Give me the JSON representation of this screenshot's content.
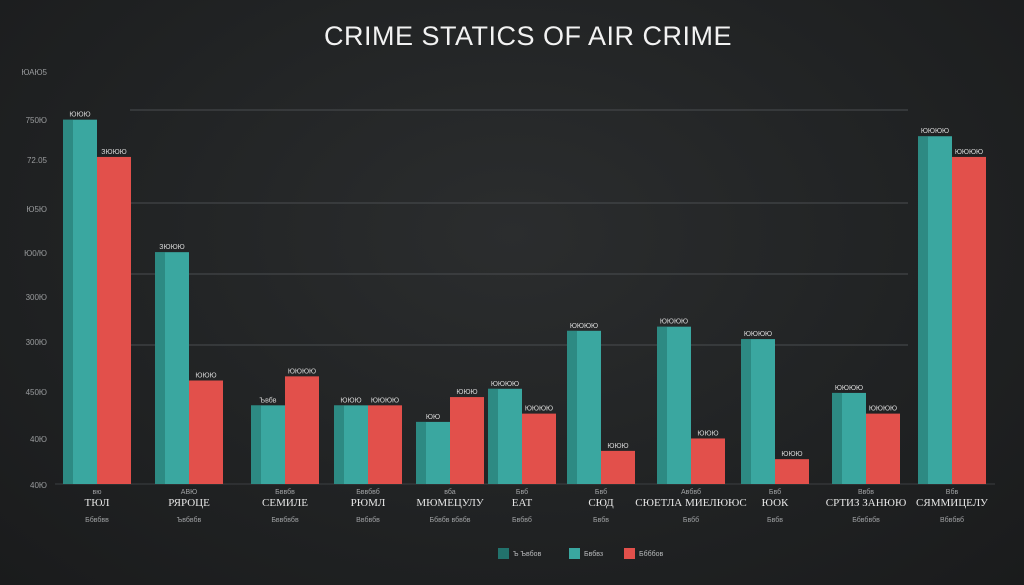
{
  "colors": {
    "background": "#222425",
    "teal": "#3aa7a0",
    "teal_dark": "#22726c",
    "red": "#e2504b",
    "grid": "#4a4d50"
  },
  "chart_data": {
    "type": "bar",
    "title": "CRIME STATICS OF AIR CRIME",
    "y_ticks": [
      "ЮАЮ5",
      "750Ю",
      "72.05",
      "Ю5Ю",
      "Ю0/Ю",
      "300Ю",
      "300Ю",
      "450Ю",
      "40Ю",
      "40Ю"
    ],
    "ylim": [
      0,
      100
    ],
    "grid": true,
    "legend_position": "bottom-center",
    "legend": [
      "Ъ Ъвбов",
      "Бвбвз",
      "Ббббов"
    ],
    "categories": [
      {
        "top": "вю",
        "main": "ТЮЛ",
        "sub": "Ббвбвв"
      },
      {
        "top": "АВЮ",
        "main": "РЯРОЦЕ",
        "sub": "Ъвбвбв"
      },
      {
        "top": "Бввбв",
        "main": "СЕМИЛЕ",
        "sub": "Бввбвбв"
      },
      {
        "top": "Бввбвб",
        "main": "РЮМЛ",
        "sub": "Ввбвбв"
      },
      {
        "top": "вба",
        "main": "МЮМЕЦУЛУ",
        "sub": "Ббвбв вбвбв"
      },
      {
        "top": "Бвб",
        "main": "ЕАТ",
        "sub": "Бвбвб"
      },
      {
        "top": "Бвб",
        "main": "СЮД",
        "sub": "Бвбв"
      },
      {
        "top": "Авбвб",
        "main": "СЮЕТЛА МИЕЛЮЮС",
        "sub": "Бвбб"
      },
      {
        "top": "Бвб",
        "main": "ЮОК",
        "sub": "Бвбв"
      },
      {
        "top": "Ввбв",
        "main": "СРТИЗ ЗАНЮЮ",
        "sub": "Ббвбвбв"
      },
      {
        "top": "Вбв",
        "main": "СЯММИЦЕЛУ",
        "sub": "Вбвбвб"
      }
    ],
    "series": [
      {
        "values": [
          88,
          56,
          19,
          19,
          15,
          23,
          37,
          38,
          35,
          22,
          84
        ],
        "labels": [
          "ЮЮЮ",
          "ЗЮЮЮ",
          "Ъвбв",
          "ЮЮЮ",
          "ЮЮ",
          "ЮЮЮЮ",
          "ЮЮЮЮ",
          "ЮЮЮЮ",
          "ЮЮЮЮ",
          "ЮЮЮЮ",
          "ЮЮЮЮ"
        ]
      },
      {
        "values": [
          79,
          25,
          26,
          19,
          21,
          17,
          8,
          11,
          6,
          17,
          79
        ],
        "labels": [
          "ЗЮЮЮ",
          "ЮЮЮ",
          "ЮЮЮЮ",
          "ЮЮЮЮ",
          "ЮЮЮ",
          "ЮЮЮЮ",
          "ЮЮЮ",
          "ЮЮЮ",
          "ЮЮЮ",
          "ЮЮЮЮ",
          "ЮЮЮЮ"
        ]
      }
    ]
  }
}
